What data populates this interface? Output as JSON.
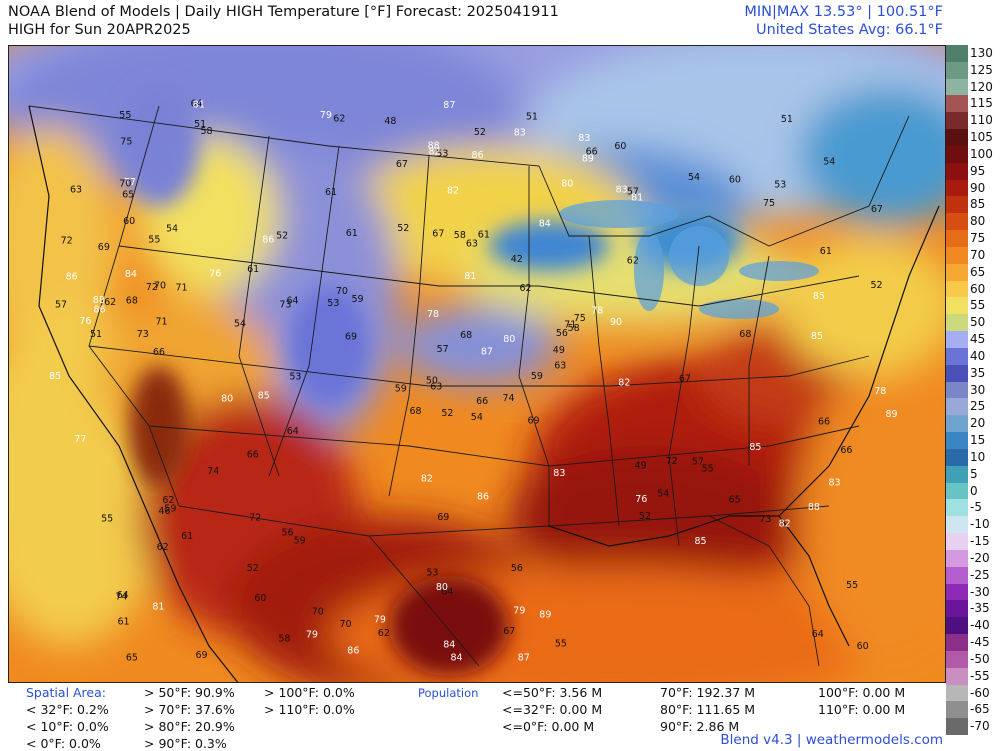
{
  "header": {
    "title_line1": "NOAA Blend of Models | Daily HIGH Temperature [°F] Forecast: 2025041911",
    "title_line2": "HIGH for Sun 20APR2025",
    "minmax": "MIN|MAX 13.53°  |  100.51°F",
    "us_avg": "United States Avg: 66.1°F"
  },
  "colorbar": {
    "labels": [
      "130",
      "125",
      "120",
      "115",
      "110",
      "105",
      "100",
      "95",
      "90",
      "85",
      "80",
      "75",
      "70",
      "65",
      "60",
      "55",
      "50",
      "45",
      "40",
      "35",
      "30",
      "25",
      "20",
      "15",
      "10",
      "5",
      "0",
      "-5",
      "-10",
      "-15",
      "-20",
      "-25",
      "-30",
      "-35",
      "-40",
      "-45",
      "-50",
      "-55",
      "-60",
      "-65",
      "-70"
    ],
    "colors": [
      "#4f7f6a",
      "#6d9a85",
      "#8db3a3",
      "#a35555",
      "#7a2a2a",
      "#5a1010",
      "#6e0e0e",
      "#8c1010",
      "#a81b10",
      "#c0320f",
      "#d64e12",
      "#e56d18",
      "#f08a20",
      "#f5a933",
      "#f7c94a",
      "#f2e060",
      "#ccd97c",
      "#a5aef0",
      "#6b73d6",
      "#4b50b8",
      "#7b86c6",
      "#9aa8d8",
      "#6fa4cf",
      "#3a86c4",
      "#2a6aa8",
      "#3fa0b6",
      "#68c4c4",
      "#9fe0e0",
      "#cfe6f0",
      "#e8d0f0",
      "#d49ae0",
      "#b45ed0",
      "#8e2ab8",
      "#6a159a",
      "#4e0f80",
      "#8a2f8a",
      "#b15aa8",
      "#c88fc0",
      "#b7b7b7",
      "#8f8f8f",
      "#6a6a6a"
    ]
  },
  "stats": {
    "spatial_label": "Spatial Area:",
    "lt32": "< 32°F: 0.2%",
    "lt10": "< 10°F: 0.0%",
    "lt0": "< 0°F: 0.0%",
    "gt50": "> 50°F: 90.9%",
    "gt70": "> 70°F: 37.6%",
    "gt80": "> 80°F: 20.9%",
    "gt90": "> 90°F: 0.3%",
    "gt100": "> 100°F: 0.0%",
    "gt110": "> 110°F: 0.0%",
    "population_label": "Population",
    "p_le50": "<=50°F: 3.56 M",
    "p_le32": "<=32°F: 0.00 M",
    "p_le0": "<=0°F: 0.00 M",
    "p70": "70°F: 192.37 M",
    "p80": "80°F: 111.65 M",
    "p90": "90°F: 2.86 M",
    "p100": "100°F: 0.00 M",
    "p110": "110°F: 0.00 M"
  },
  "credit": "Blend v4.3 | weathermodels.com",
  "map": {
    "values": [
      "54",
      "55",
      "63",
      "64",
      "56",
      "59",
      "60",
      "61",
      "57",
      "59",
      "58",
      "60",
      "66",
      "67",
      "68",
      "62",
      "69",
      "67",
      "62",
      "61",
      "59",
      "61",
      "60",
      "58",
      "58",
      "55",
      "54",
      "53",
      "51",
      "49",
      "52",
      "50",
      "53",
      "57",
      "52",
      "54",
      "56",
      "55",
      "57",
      "51",
      "53",
      "54",
      "52",
      "58",
      "57",
      "49",
      "65",
      "64",
      "63",
      "62",
      "61",
      "63",
      "54",
      "52",
      "51",
      "55",
      "56",
      "53",
      "52",
      "53",
      "62",
      "61",
      "60",
      "64",
      "66",
      "67",
      "68",
      "69",
      "70",
      "72",
      "73",
      "74",
      "75",
      "76",
      "77",
      "78",
      "79",
      "80",
      "81",
      "82",
      "83",
      "84",
      "85",
      "86",
      "87",
      "88",
      "89",
      "90",
      "85",
      "87",
      "88",
      "86",
      "84",
      "83",
      "81",
      "80",
      "79",
      "78",
      "76",
      "74",
      "72",
      "70",
      "71",
      "75",
      "69",
      "66",
      "65",
      "63",
      "59",
      "62",
      "55",
      "52",
      "54",
      "52",
      "48",
      "46",
      "51",
      "42",
      "61",
      "67",
      "66",
      "64",
      "62",
      "68",
      "60",
      "59",
      "55",
      "64",
      "61",
      "66",
      "65",
      "64",
      "62",
      "70",
      "69",
      "71",
      "73",
      "74",
      "75",
      "77",
      "79",
      "80",
      "82",
      "85",
      "86",
      "88",
      "86",
      "85",
      "83",
      "82",
      "81",
      "85",
      "84",
      "83",
      "86",
      "85",
      "87",
      "89",
      "84",
      "82",
      "81",
      "82",
      "89",
      "86",
      "83",
      "78",
      "79",
      "80",
      "76",
      "72",
      "70",
      "69",
      "66",
      "67",
      "68",
      "70",
      "71",
      "72",
      "73"
    ]
  }
}
